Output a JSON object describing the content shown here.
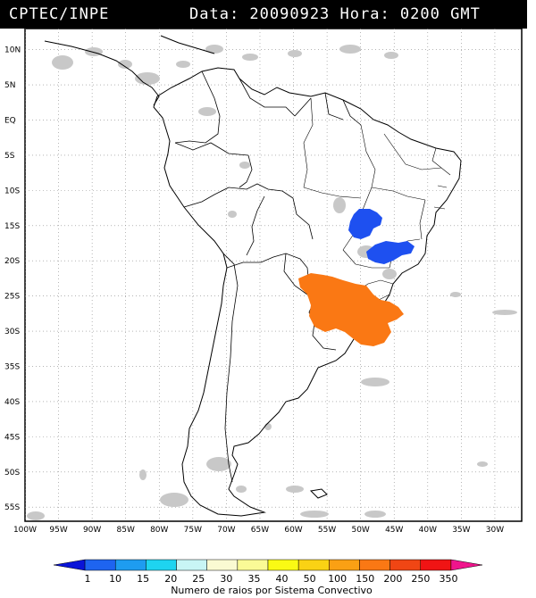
{
  "header": {
    "source": "CPTEC/INPE",
    "datetime": "Data: 20090923 Hora: 0200 GMT"
  },
  "axes": {
    "lat_labels": [
      "10N",
      "5N",
      "EQ",
      "5S",
      "10S",
      "15S",
      "20S",
      "25S",
      "30S",
      "35S",
      "40S",
      "45S",
      "50S",
      "55S"
    ],
    "lat_values": [
      10,
      5,
      0,
      -5,
      -10,
      -15,
      -20,
      -25,
      -30,
      -35,
      -40,
      -45,
      -50,
      -55
    ],
    "lon_labels": [
      "100W",
      "95W",
      "90W",
      "85W",
      "80W",
      "75W",
      "70W",
      "65W",
      "60W",
      "55W",
      "50W",
      "45W",
      "40W",
      "35W",
      "30W"
    ],
    "lon_values": [
      -100,
      -95,
      -90,
      -85,
      -80,
      -75,
      -70,
      -65,
      -60,
      -55,
      -50,
      -45,
      -40,
      -35,
      -30
    ]
  },
  "legend": {
    "title": "Numero de raios por Sistema Convectivo",
    "ticks": [
      "1",
      "10",
      "15",
      "20",
      "25",
      "30",
      "35",
      "40",
      "50",
      "100",
      "150",
      "200",
      "250",
      "350"
    ],
    "colors": [
      "#0a14d8",
      "#1e64f0",
      "#1e9cf0",
      "#1ed4f0",
      "#c8f5f5",
      "#fafad2",
      "#fafa96",
      "#fafa14",
      "#fad214",
      "#faa014",
      "#fa7814",
      "#f04614",
      "#f01414",
      "#f0148c"
    ]
  },
  "clusters": [
    {
      "name": "blue-cluster-north",
      "color": "#1e50f0"
    },
    {
      "name": "blue-cluster-south",
      "color": "#1e50f0"
    },
    {
      "name": "orange-cluster",
      "color": "#fa7814"
    }
  ]
}
